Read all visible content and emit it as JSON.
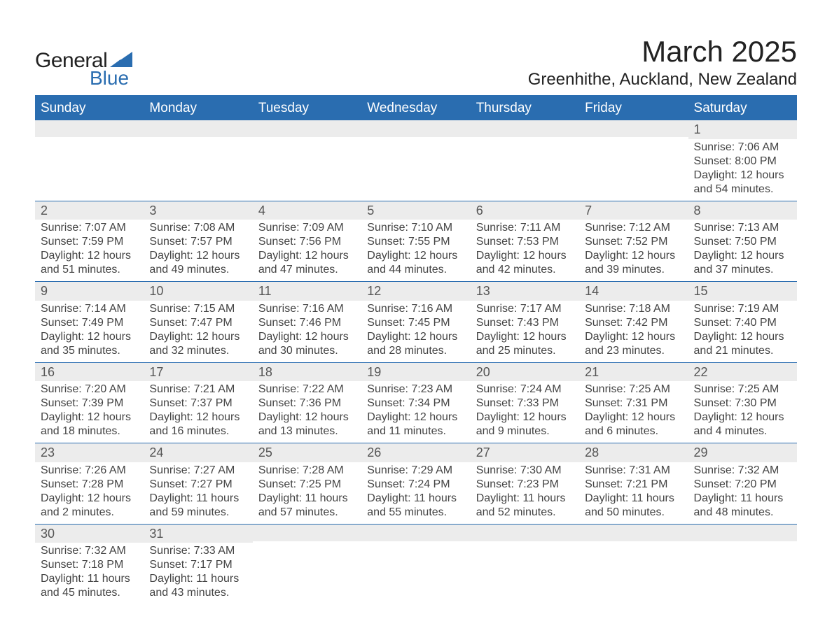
{
  "logo": {
    "text_general": "General",
    "text_blue": "Blue",
    "mark_color": "#2a6db0"
  },
  "title": "March 2025",
  "location": "Greenhithe, Auckland, New Zealand",
  "days_of_week": [
    "Sunday",
    "Monday",
    "Tuesday",
    "Wednesday",
    "Thursday",
    "Friday",
    "Saturday"
  ],
  "colors": {
    "header_bg": "#2a6db0",
    "header_text": "#ffffff",
    "daynum_bg": "#ececec",
    "row_divider": "#2a6db0",
    "body_text": "#444444",
    "page_bg": "#ffffff"
  },
  "typography": {
    "title_fontsize": 42,
    "location_fontsize": 24,
    "dow_fontsize": 19,
    "daynum_fontsize": 18,
    "body_fontsize": 16
  },
  "weeks": [
    [
      {
        "empty": true
      },
      {
        "empty": true
      },
      {
        "empty": true
      },
      {
        "empty": true
      },
      {
        "empty": true
      },
      {
        "empty": true
      },
      {
        "num": "1",
        "sunrise": "Sunrise: 7:06 AM",
        "sunset": "Sunset: 8:00 PM",
        "daylight1": "Daylight: 12 hours",
        "daylight2": "and 54 minutes."
      }
    ],
    [
      {
        "num": "2",
        "sunrise": "Sunrise: 7:07 AM",
        "sunset": "Sunset: 7:59 PM",
        "daylight1": "Daylight: 12 hours",
        "daylight2": "and 51 minutes."
      },
      {
        "num": "3",
        "sunrise": "Sunrise: 7:08 AM",
        "sunset": "Sunset: 7:57 PM",
        "daylight1": "Daylight: 12 hours",
        "daylight2": "and 49 minutes."
      },
      {
        "num": "4",
        "sunrise": "Sunrise: 7:09 AM",
        "sunset": "Sunset: 7:56 PM",
        "daylight1": "Daylight: 12 hours",
        "daylight2": "and 47 minutes."
      },
      {
        "num": "5",
        "sunrise": "Sunrise: 7:10 AM",
        "sunset": "Sunset: 7:55 PM",
        "daylight1": "Daylight: 12 hours",
        "daylight2": "and 44 minutes."
      },
      {
        "num": "6",
        "sunrise": "Sunrise: 7:11 AM",
        "sunset": "Sunset: 7:53 PM",
        "daylight1": "Daylight: 12 hours",
        "daylight2": "and 42 minutes."
      },
      {
        "num": "7",
        "sunrise": "Sunrise: 7:12 AM",
        "sunset": "Sunset: 7:52 PM",
        "daylight1": "Daylight: 12 hours",
        "daylight2": "and 39 minutes."
      },
      {
        "num": "8",
        "sunrise": "Sunrise: 7:13 AM",
        "sunset": "Sunset: 7:50 PM",
        "daylight1": "Daylight: 12 hours",
        "daylight2": "and 37 minutes."
      }
    ],
    [
      {
        "num": "9",
        "sunrise": "Sunrise: 7:14 AM",
        "sunset": "Sunset: 7:49 PM",
        "daylight1": "Daylight: 12 hours",
        "daylight2": "and 35 minutes."
      },
      {
        "num": "10",
        "sunrise": "Sunrise: 7:15 AM",
        "sunset": "Sunset: 7:47 PM",
        "daylight1": "Daylight: 12 hours",
        "daylight2": "and 32 minutes."
      },
      {
        "num": "11",
        "sunrise": "Sunrise: 7:16 AM",
        "sunset": "Sunset: 7:46 PM",
        "daylight1": "Daylight: 12 hours",
        "daylight2": "and 30 minutes."
      },
      {
        "num": "12",
        "sunrise": "Sunrise: 7:16 AM",
        "sunset": "Sunset: 7:45 PM",
        "daylight1": "Daylight: 12 hours",
        "daylight2": "and 28 minutes."
      },
      {
        "num": "13",
        "sunrise": "Sunrise: 7:17 AM",
        "sunset": "Sunset: 7:43 PM",
        "daylight1": "Daylight: 12 hours",
        "daylight2": "and 25 minutes."
      },
      {
        "num": "14",
        "sunrise": "Sunrise: 7:18 AM",
        "sunset": "Sunset: 7:42 PM",
        "daylight1": "Daylight: 12 hours",
        "daylight2": "and 23 minutes."
      },
      {
        "num": "15",
        "sunrise": "Sunrise: 7:19 AM",
        "sunset": "Sunset: 7:40 PM",
        "daylight1": "Daylight: 12 hours",
        "daylight2": "and 21 minutes."
      }
    ],
    [
      {
        "num": "16",
        "sunrise": "Sunrise: 7:20 AM",
        "sunset": "Sunset: 7:39 PM",
        "daylight1": "Daylight: 12 hours",
        "daylight2": "and 18 minutes."
      },
      {
        "num": "17",
        "sunrise": "Sunrise: 7:21 AM",
        "sunset": "Sunset: 7:37 PM",
        "daylight1": "Daylight: 12 hours",
        "daylight2": "and 16 minutes."
      },
      {
        "num": "18",
        "sunrise": "Sunrise: 7:22 AM",
        "sunset": "Sunset: 7:36 PM",
        "daylight1": "Daylight: 12 hours",
        "daylight2": "and 13 minutes."
      },
      {
        "num": "19",
        "sunrise": "Sunrise: 7:23 AM",
        "sunset": "Sunset: 7:34 PM",
        "daylight1": "Daylight: 12 hours",
        "daylight2": "and 11 minutes."
      },
      {
        "num": "20",
        "sunrise": "Sunrise: 7:24 AM",
        "sunset": "Sunset: 7:33 PM",
        "daylight1": "Daylight: 12 hours",
        "daylight2": "and 9 minutes."
      },
      {
        "num": "21",
        "sunrise": "Sunrise: 7:25 AM",
        "sunset": "Sunset: 7:31 PM",
        "daylight1": "Daylight: 12 hours",
        "daylight2": "and 6 minutes."
      },
      {
        "num": "22",
        "sunrise": "Sunrise: 7:25 AM",
        "sunset": "Sunset: 7:30 PM",
        "daylight1": "Daylight: 12 hours",
        "daylight2": "and 4 minutes."
      }
    ],
    [
      {
        "num": "23",
        "sunrise": "Sunrise: 7:26 AM",
        "sunset": "Sunset: 7:28 PM",
        "daylight1": "Daylight: 12 hours",
        "daylight2": "and 2 minutes."
      },
      {
        "num": "24",
        "sunrise": "Sunrise: 7:27 AM",
        "sunset": "Sunset: 7:27 PM",
        "daylight1": "Daylight: 11 hours",
        "daylight2": "and 59 minutes."
      },
      {
        "num": "25",
        "sunrise": "Sunrise: 7:28 AM",
        "sunset": "Sunset: 7:25 PM",
        "daylight1": "Daylight: 11 hours",
        "daylight2": "and 57 minutes."
      },
      {
        "num": "26",
        "sunrise": "Sunrise: 7:29 AM",
        "sunset": "Sunset: 7:24 PM",
        "daylight1": "Daylight: 11 hours",
        "daylight2": "and 55 minutes."
      },
      {
        "num": "27",
        "sunrise": "Sunrise: 7:30 AM",
        "sunset": "Sunset: 7:23 PM",
        "daylight1": "Daylight: 11 hours",
        "daylight2": "and 52 minutes."
      },
      {
        "num": "28",
        "sunrise": "Sunrise: 7:31 AM",
        "sunset": "Sunset: 7:21 PM",
        "daylight1": "Daylight: 11 hours",
        "daylight2": "and 50 minutes."
      },
      {
        "num": "29",
        "sunrise": "Sunrise: 7:32 AM",
        "sunset": "Sunset: 7:20 PM",
        "daylight1": "Daylight: 11 hours",
        "daylight2": "and 48 minutes."
      }
    ],
    [
      {
        "num": "30",
        "sunrise": "Sunrise: 7:32 AM",
        "sunset": "Sunset: 7:18 PM",
        "daylight1": "Daylight: 11 hours",
        "daylight2": "and 45 minutes."
      },
      {
        "num": "31",
        "sunrise": "Sunrise: 7:33 AM",
        "sunset": "Sunset: 7:17 PM",
        "daylight1": "Daylight: 11 hours",
        "daylight2": "and 43 minutes."
      },
      {
        "empty": true
      },
      {
        "empty": true
      },
      {
        "empty": true
      },
      {
        "empty": true
      },
      {
        "empty": true
      }
    ]
  ]
}
